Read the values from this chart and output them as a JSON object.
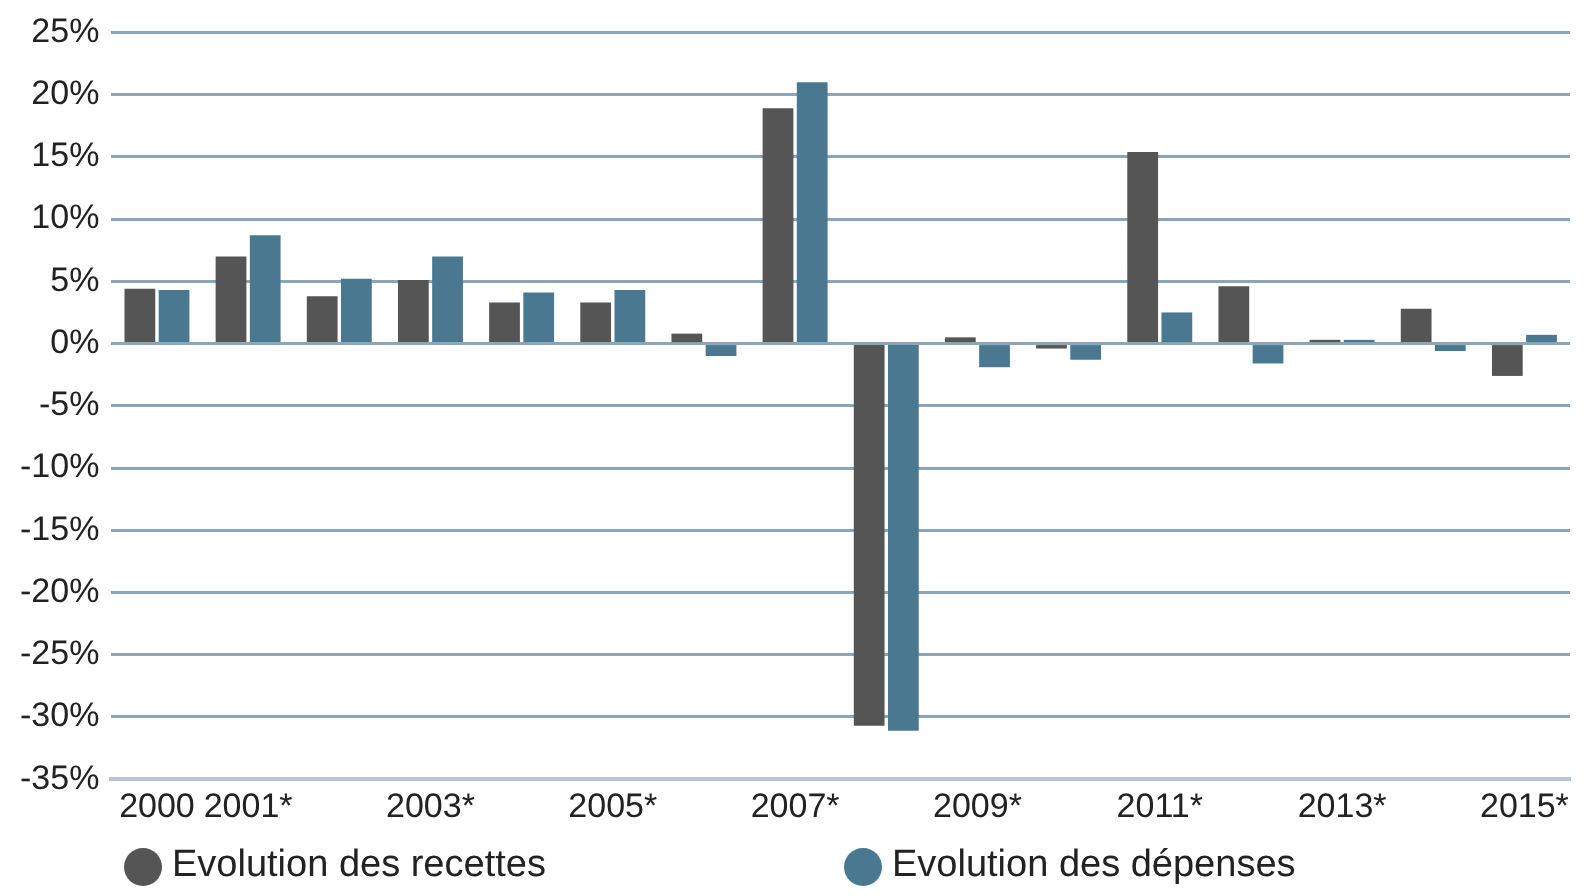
{
  "chart_data": {
    "type": "bar",
    "categories": [
      "2000",
      "2001*",
      null,
      "2003*",
      null,
      "2005*",
      null,
      "2007*",
      null,
      "2009*",
      null,
      "2011*",
      null,
      "2013*",
      null,
      "2015*"
    ],
    "series": [
      {
        "name": "Evolution des recettes",
        "color": "#555555",
        "values": [
          4.4,
          7.0,
          3.8,
          5.1,
          3.3,
          3.3,
          0.8,
          18.9,
          -30.7,
          0.5,
          -0.4,
          15.4,
          4.6,
          0.3,
          2.8,
          -2.6
        ]
      },
      {
        "name": "Evolution des dépenses",
        "color": "#4b7891",
        "values": [
          4.3,
          8.7,
          5.2,
          7.0,
          4.1,
          4.3,
          -1.0,
          21.0,
          -31.1,
          -1.9,
          -1.3,
          2.5,
          -1.6,
          0.3,
          -0.6,
          0.7
        ]
      }
    ],
    "ylim": [
      -35,
      25
    ],
    "yticks": [
      {
        "value": -35,
        "label": "-35%"
      },
      {
        "value": -30,
        "label": "-30%"
      },
      {
        "value": -25,
        "label": "-25%"
      },
      {
        "value": -20,
        "label": "-20%"
      },
      {
        "value": -15,
        "label": "-15%"
      },
      {
        "value": -10,
        "label": "-10%"
      },
      {
        "value": -5,
        "label": "-5%"
      },
      {
        "value": 0,
        "label": "0%"
      },
      {
        "value": 5,
        "label": "5%"
      },
      {
        "value": 10,
        "label": "10%"
      },
      {
        "value": 15,
        "label": "15%"
      },
      {
        "value": 20,
        "label": "20%"
      },
      {
        "value": 25,
        "label": "25%"
      }
    ],
    "grid": "y",
    "legend": "bottom"
  }
}
